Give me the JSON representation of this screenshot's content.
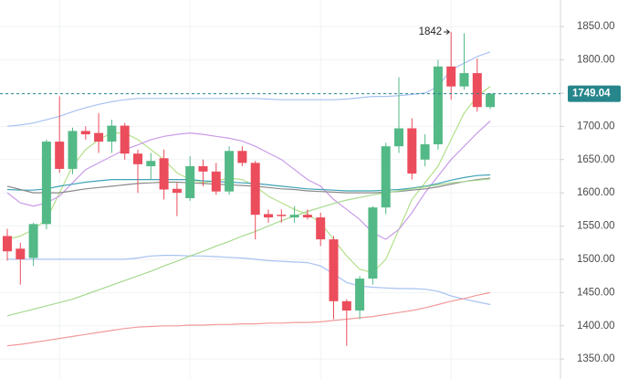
{
  "chart_data": {
    "type": "candlestick",
    "open": [
      1535,
      1516,
      1502,
      1553,
      1677,
      1636,
      1693,
      1690,
      1677,
      1701,
      1659,
      1640,
      1652,
      1606,
      1592,
      1640,
      1632,
      1602,
      1663,
      1645,
      1568,
      1567,
      1563,
      1567,
      1563,
      1530,
      1437,
      1423,
      1471,
      1578,
      1670,
      1697,
      1650,
      1673,
      1790,
      1760,
      1780,
      1729
    ],
    "high": [
      1546,
      1525,
      1555,
      1680,
      1745,
      1698,
      1700,
      1720,
      1710,
      1705,
      1665,
      1660,
      1665,
      1615,
      1655,
      1650,
      1645,
      1670,
      1670,
      1648,
      1575,
      1575,
      1580,
      1575,
      1570,
      1535,
      1440,
      1475,
      1580,
      1675,
      1774,
      1712,
      1688,
      1800,
      1842,
      1840,
      1802,
      1750
    ],
    "low": [
      1498,
      1462,
      1490,
      1545,
      1630,
      1628,
      1680,
      1660,
      1660,
      1650,
      1600,
      1620,
      1590,
      1565,
      1588,
      1610,
      1597,
      1597,
      1640,
      1530,
      1555,
      1555,
      1555,
      1560,
      1520,
      1410,
      1370,
      1410,
      1462,
      1568,
      1660,
      1620,
      1640,
      1665,
      1740,
      1755,
      1722,
      1726
    ],
    "close": [
      1512,
      1500,
      1553,
      1677,
      1636,
      1693,
      1688,
      1677,
      1701,
      1659,
      1643,
      1648,
      1605,
      1600,
      1640,
      1632,
      1602,
      1663,
      1645,
      1567,
      1563,
      1565,
      1567,
      1563,
      1530,
      1437,
      1423,
      1471,
      1578,
      1670,
      1697,
      1629,
      1673,
      1790,
      1760,
      1780,
      1729,
      1749.04
    ],
    "up_color": "#53b987",
    "down_color": "#eb4d5c",
    "lines": [
      {
        "color": "#a8c2f2",
        "values": [
          1700,
          1702,
          1705,
          1710,
          1715,
          1722,
          1728,
          1733,
          1737,
          1740,
          1742,
          1742,
          1742,
          1742,
          1742,
          1742,
          1742,
          1742,
          1742,
          1742,
          1741,
          1740,
          1740,
          1740,
          1740,
          1740,
          1741,
          1743,
          1745,
          1745,
          1746,
          1748,
          1750,
          1760,
          1785,
          1795,
          1805,
          1812
        ]
      },
      {
        "color": "#a8c2f2",
        "values": [
          1500,
          1500,
          1500,
          1500,
          1500,
          1500,
          1500,
          1500,
          1500,
          1500,
          1502,
          1505,
          1506,
          1506,
          1505,
          1505,
          1504,
          1503,
          1502,
          1500,
          1498,
          1497,
          1496,
          1495,
          1490,
          1478,
          1465,
          1460,
          1458,
          1457,
          1456,
          1456,
          1455,
          1452,
          1445,
          1440,
          1436,
          1432
        ]
      },
      {
        "color": "#b4e08a",
        "values": [
          1530,
          1535,
          1545,
          1560,
          1600,
          1640,
          1665,
          1680,
          1690,
          1690,
          1680,
          1665,
          1650,
          1630,
          1620,
          1615,
          1618,
          1622,
          1620,
          1610,
          1595,
          1585,
          1575,
          1568,
          1555,
          1530,
          1505,
          1485,
          1480,
          1500,
          1545,
          1590,
          1615,
          1640,
          1680,
          1720,
          1745,
          1760
        ]
      },
      {
        "color": "#c99be8",
        "values": [
          1600,
          1585,
          1580,
          1585,
          1595,
          1615,
          1635,
          1645,
          1655,
          1665,
          1672,
          1680,
          1685,
          1688,
          1690,
          1688,
          1685,
          1682,
          1678,
          1670,
          1660,
          1650,
          1635,
          1620,
          1610,
          1590,
          1575,
          1560,
          1540,
          1530,
          1545,
          1570,
          1600,
          1625,
          1650,
          1670,
          1690,
          1708
        ]
      },
      {
        "color": "#3fa3b8",
        "values": [
          1605,
          1604,
          1604,
          1606,
          1610,
          1613,
          1616,
          1618,
          1620,
          1620,
          1620,
          1620,
          1620,
          1620,
          1620,
          1618,
          1617,
          1616,
          1615,
          1614,
          1612,
          1610,
          1608,
          1606,
          1605,
          1604,
          1603,
          1603,
          1603,
          1604,
          1605,
          1607,
          1610,
          1614,
          1619,
          1623,
          1626,
          1627
        ]
      },
      {
        "color": "#8a8a8a",
        "values": [
          1610,
          1605,
          1600,
          1600,
          1600,
          1603,
          1606,
          1608,
          1610,
          1612,
          1614,
          1615,
          1616,
          1616,
          1615,
          1614,
          1613,
          1612,
          1611,
          1610,
          1608,
          1606,
          1605,
          1603,
          1602,
          1601,
          1600,
          1600,
          1600,
          1601,
          1602,
          1604,
          1606,
          1609,
          1613,
          1617,
          1620,
          1622
        ]
      },
      {
        "color": "#a6d98e",
        "values": [
          1415,
          1420,
          1425,
          1430,
          1435,
          1440,
          1447,
          1454,
          1461,
          1468,
          1475,
          1482,
          1490,
          1497,
          1505,
          1512,
          1520,
          1527,
          1535,
          1542,
          1550,
          1558,
          1565,
          1572,
          1578,
          1584,
          1589,
          1593,
          1597,
          1600,
          1603,
          1606,
          1609,
          1612,
          1615,
          1617,
          1619,
          1621
        ]
      },
      {
        "color": "#f29a9a",
        "values": [
          1370,
          1372,
          1375,
          1378,
          1381,
          1384,
          1387,
          1390,
          1393,
          1396,
          1398,
          1399,
          1400,
          1400,
          1401,
          1401,
          1402,
          1402,
          1403,
          1403,
          1404,
          1404,
          1405,
          1405,
          1406,
          1408,
          1410,
          1412,
          1414,
          1417,
          1420,
          1423,
          1427,
          1432,
          1437,
          1441,
          1446,
          1450
        ]
      }
    ],
    "ylim": [
      1320,
      1890
    ],
    "yticks": [
      {
        "value": 1350,
        "label": "1350.00"
      },
      {
        "value": 1400,
        "label": "1400.00"
      },
      {
        "value": 1450,
        "label": "1450.00"
      },
      {
        "value": 1500,
        "label": "1500.00"
      },
      {
        "value": 1550,
        "label": "1550.00"
      },
      {
        "value": 1600,
        "label": "1600.00"
      },
      {
        "value": 1650,
        "label": "1650.00"
      },
      {
        "value": 1700,
        "label": "1700.00"
      },
      {
        "value": 1750,
        "label": "1750.00"
      },
      {
        "value": 1800,
        "label": "1800.00"
      },
      {
        "value": 1850,
        "label": "1850.00"
      }
    ],
    "last_price": 1749.04,
    "last_price_color": "#26868c",
    "high_annotation": 1842,
    "grid": true
  }
}
